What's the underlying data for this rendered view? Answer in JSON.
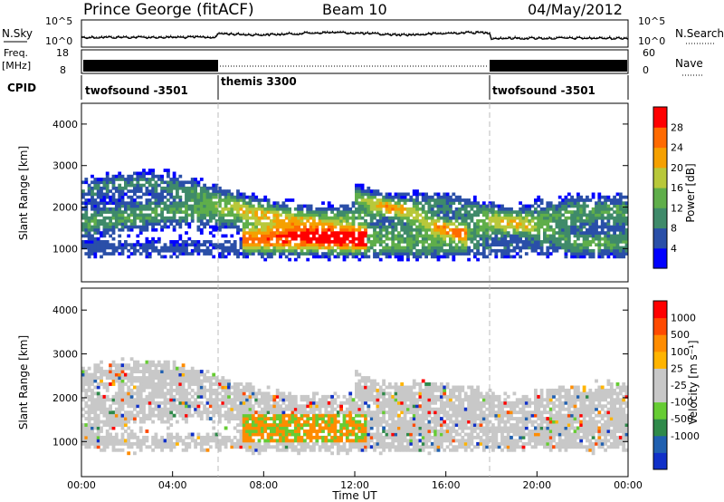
{
  "header": {
    "station": "Prince George (fitACF)",
    "beam": "Beam 10",
    "date": "04/May/2012"
  },
  "noise_panel": {
    "left_label": "N.Sky",
    "right_label": "N.Search",
    "ticks_left": [
      "10^5",
      "10^0"
    ],
    "ticks_right": [
      "10^5",
      "10^0"
    ]
  },
  "freq_panel": {
    "label_top": "Freq.",
    "label_unit": "[MHz]",
    "ticks_left": [
      "18",
      "8"
    ],
    "ticks_right": [
      "60",
      "0"
    ],
    "right_label": "Nave"
  },
  "cpid": {
    "label": "CPID",
    "segments": [
      {
        "name": "twofsound -3501",
        "start": 0,
        "end": 6
      },
      {
        "name": "themis 3300",
        "start": 6,
        "end": 18
      },
      {
        "name": "twofsound -3501",
        "start": 18,
        "end": 24
      }
    ]
  },
  "colors": {
    "power": [
      "#0000ff",
      "#2a4fa8",
      "#3f8a6a",
      "#5fae4a",
      "#b8c83a",
      "#f5a000",
      "#ff6a00",
      "#ff0000"
    ],
    "velocity": [
      "#ff0000",
      "#ff4a00",
      "#ff8c00",
      "#ffb400",
      "#c8c8c8",
      "#c8c8c8",
      "#66cc33",
      "#2f8a4a",
      "#2060b0",
      "#1030c8"
    ]
  },
  "chart_data": [
    {
      "type": "heatmap",
      "name": "power",
      "ylabel": "Slant Range [km]",
      "xlim": [
        0,
        24
      ],
      "ylim": [
        200,
        4500
      ],
      "yticks": [
        "1000",
        "2000",
        "3000",
        "4000"
      ],
      "colorbar_label": "Power [dB]",
      "colorbar_ticks": [
        "4",
        "8",
        "12",
        "16",
        "20",
        "24",
        "28"
      ],
      "colorbar_range": [
        0,
        32
      ]
    },
    {
      "type": "heatmap",
      "name": "velocity",
      "ylabel": "Slant Range [km]",
      "xlabel": "Time UT",
      "xlim": [
        0,
        24
      ],
      "ylim": [
        200,
        4500
      ],
      "yticks": [
        "1000",
        "2000",
        "3000",
        "4000"
      ],
      "xticks": [
        "00:00",
        "04:00",
        "08:00",
        "12:00",
        "16:00",
        "20:00",
        "00:00"
      ],
      "colorbar_label": "Velocity [m s⁻¹]",
      "colorbar_ticks": [
        "1000",
        "500",
        "100",
        "25",
        "-25",
        "-100",
        "-500",
        "-1000"
      ]
    }
  ]
}
